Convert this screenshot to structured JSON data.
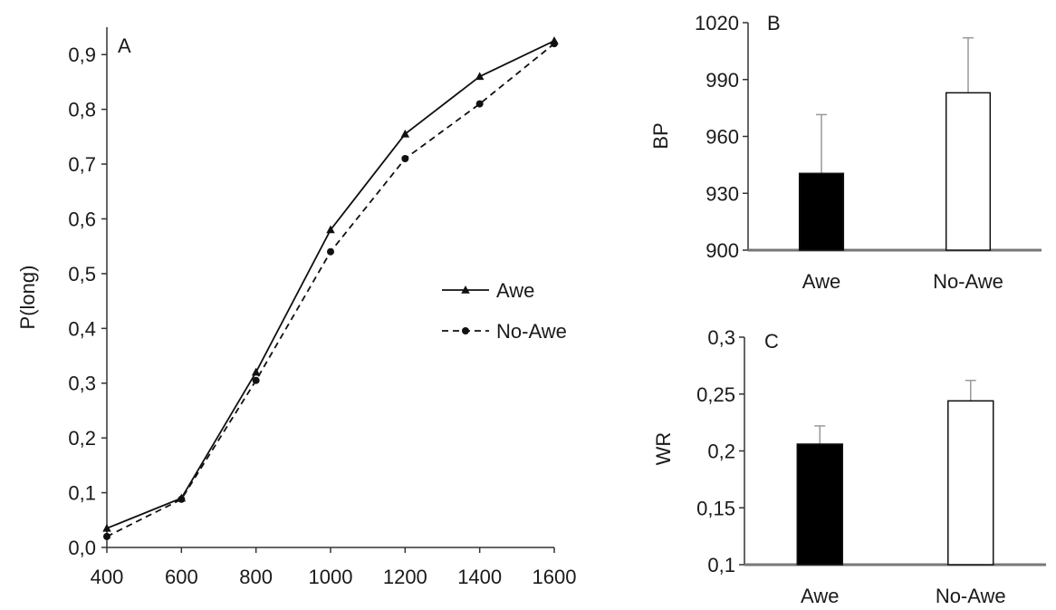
{
  "chart_data": [
    {
      "panel": "A",
      "type": "line",
      "ylabel": "P(long)",
      "xlabel": "",
      "x": [
        400,
        600,
        800,
        1000,
        1200,
        1400,
        1600
      ],
      "x_tick_labels": [
        "400",
        "600",
        "800",
        "1000",
        "1200",
        "1400",
        "1600"
      ],
      "y_tick_labels": [
        "0,0",
        "0,1",
        "0,2",
        "0,3",
        "0,4",
        "0,5",
        "0,6",
        "0,7",
        "0,8",
        "0,9"
      ],
      "y_ticks": [
        0,
        0.1,
        0.2,
        0.3,
        0.4,
        0.5,
        0.6,
        0.7,
        0.8,
        0.9
      ],
      "xlim": [
        400,
        1600
      ],
      "ylim": [
        0,
        0.95
      ],
      "grid": false,
      "legend_position": "right",
      "series": [
        {
          "name": "Awe",
          "style": "solid",
          "marker": "triangle",
          "values": [
            0.035,
            0.09,
            0.32,
            0.58,
            0.755,
            0.86,
            0.925
          ]
        },
        {
          "name": "No-Awe",
          "style": "dashed",
          "marker": "circle",
          "values": [
            0.02,
            0.088,
            0.305,
            0.54,
            0.71,
            0.81,
            0.92
          ]
        }
      ]
    },
    {
      "panel": "B",
      "type": "bar",
      "ylabel": "BP",
      "xlabel": "",
      "categories": [
        "Awe",
        "No-Awe"
      ],
      "values": [
        940.5,
        983
      ],
      "error": [
        31,
        29
      ],
      "fill": [
        "#000000",
        "#ffffff"
      ],
      "y_ticks": [
        900,
        930,
        960,
        990,
        1020
      ],
      "y_tick_labels": [
        "900",
        "930",
        "960",
        "990",
        "1020"
      ],
      "ylim": [
        900,
        1020
      ],
      "grid": false
    },
    {
      "panel": "C",
      "type": "bar",
      "ylabel": "WR",
      "xlabel": "",
      "categories": [
        "Awe",
        "No-Awe"
      ],
      "values": [
        0.206,
        0.244
      ],
      "error": [
        0.016,
        0.018
      ],
      "fill": [
        "#000000",
        "#ffffff"
      ],
      "y_ticks": [
        0.1,
        0.15,
        0.2,
        0.25,
        0.3
      ],
      "y_tick_labels": [
        "0,1",
        "0,15",
        "0,2",
        "0,25",
        "0,3"
      ],
      "ylim": [
        0.1,
        0.3
      ],
      "grid": false
    }
  ]
}
